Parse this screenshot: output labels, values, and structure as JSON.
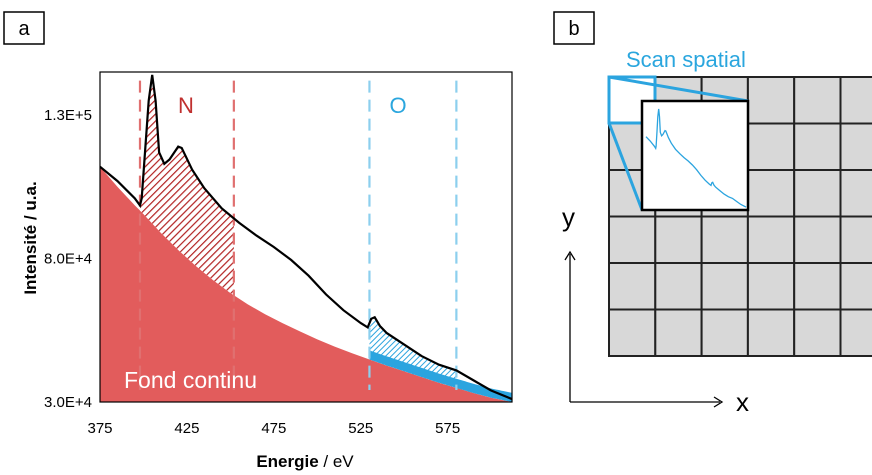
{
  "panel_a": {
    "label": "a",
    "region_n": "N",
    "region_o": "O",
    "background_label": "Fond continu",
    "xlabel_bold": "Energie",
    "xlabel_unit": " / eV",
    "ylabel": "Intensité / u.a."
  },
  "panel_b": {
    "label": "b",
    "scan_title": "Scan spatial",
    "axis_x": "x",
    "axis_y": "y",
    "grid_rows": 6,
    "grid_cols": 6
  },
  "colors": {
    "background_fill": "#e25c5c",
    "n_hatch": "#b22222",
    "o_fill": "#2ba4df",
    "n_label": "#c0302f",
    "o_label": "#2aa6de",
    "n_dash": "#e07070",
    "o_dash": "#8ccfee",
    "spectrum": "#000000",
    "grid_cell": "#d8d8d8",
    "inset_curve": "#2ba4df"
  },
  "chart_data": {
    "type": "line",
    "title": "",
    "xlabel": "Energie / eV",
    "ylabel": "Intensité / u.a.",
    "xlim": [
      375,
      612
    ],
    "ylim": [
      30000,
      145000
    ],
    "xticks": [
      "375",
      "425",
      "475",
      "525",
      "575"
    ],
    "yticks": [
      "3.0E+4",
      "8.0E+4",
      "1.3E+5"
    ],
    "grid": false,
    "legend": "none",
    "n_edge_window": [
      398,
      452
    ],
    "o_edge_window": [
      530,
      580
    ],
    "series": [
      {
        "name": "",
        "x": [
          375,
          385,
          395,
          398,
          399,
          401,
          403,
          405,
          407,
          409,
          412,
          415,
          420,
          422,
          424,
          428,
          435,
          445,
          455,
          465,
          475,
          485,
          495,
          505,
          515,
          525,
          529,
          531,
          533,
          536,
          540,
          550,
          560,
          570,
          580,
          590,
          600,
          612
        ],
        "y": [
          112000,
          107000,
          101000,
          98500,
          101000,
          118000,
          135000,
          144000,
          135000,
          117000,
          113000,
          114500,
          119000,
          118500,
          116000,
          111000,
          104500,
          97500,
          92500,
          88000,
          84000,
          79500,
          74000,
          67500,
          62000,
          57500,
          56000,
          59000,
          59500,
          56500,
          54000,
          50000,
          46000,
          43000,
          41000,
          37500,
          34000,
          31000
        ]
      },
      {
        "name": "Fond continu",
        "x": [
          375,
          385,
          395,
          400,
          410,
          420,
          430,
          440,
          450,
          460,
          470,
          480,
          490,
          500,
          510,
          520,
          530,
          540,
          550,
          560,
          570,
          580,
          590,
          600,
          612
        ],
        "y": [
          112000,
          105000,
          98500,
          95500,
          89000,
          83000,
          77500,
          72500,
          68000,
          64000,
          60600,
          57500,
          54600,
          51800,
          49300,
          47000,
          44800,
          42700,
          40700,
          38700,
          36700,
          34900,
          33100,
          31500,
          30000
        ]
      },
      {
        "name": "",
        "x": [
          530,
          540,
          550,
          560,
          570,
          580,
          590,
          600,
          612
        ],
        "y": [
          44800,
          42700,
          40700,
          38700,
          36700,
          34900,
          33100,
          31500,
          30000
        ]
      }
    ]
  }
}
